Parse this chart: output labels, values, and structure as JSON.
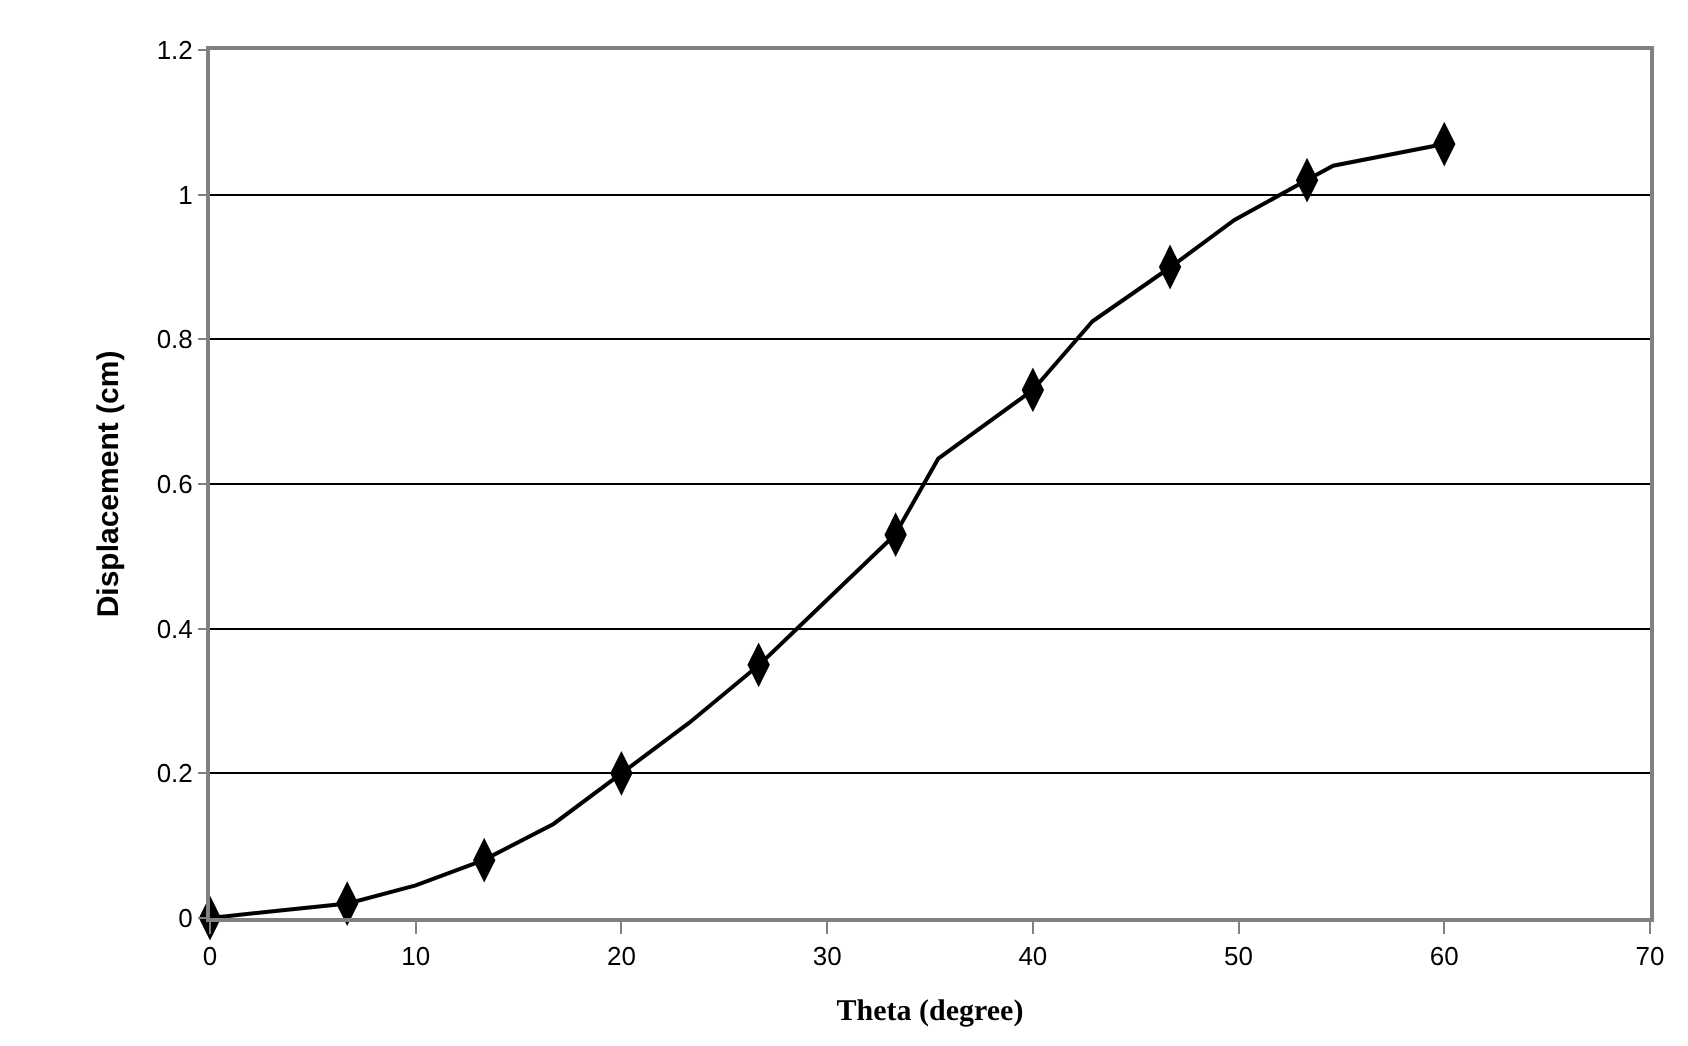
{
  "chart_data": {
    "type": "scatter",
    "xlabel": "Theta (degree)",
    "ylabel": "Displacement (cm)",
    "xlim": [
      0,
      70
    ],
    "xticks": [
      0,
      10,
      20,
      30,
      40,
      50,
      60,
      70
    ],
    "ylim": [
      0,
      1.2
    ],
    "yticks": [
      0,
      0.2,
      0.4,
      0.6,
      0.8,
      1,
      1.2
    ],
    "grid": "y",
    "series": [
      {
        "type": "line",
        "color": "#000000",
        "marker": "none",
        "line_style": "solid",
        "x": [
          0,
          3.3,
          6.7,
          10,
          13.3,
          16.7,
          20,
          23.3,
          26.7,
          30,
          33.3,
          35.4,
          40,
          42.9,
          46.7,
          49.8,
          53.3,
          54.6,
          60
        ],
        "values": [
          0,
          0.01,
          0.02,
          0.045,
          0.08,
          0.13,
          0.2,
          0.27,
          0.35,
          0.44,
          0.53,
          0.635,
          0.73,
          0.825,
          0.9,
          0.965,
          1.02,
          1.04,
          1.07
        ]
      },
      {
        "color": "#000000",
        "marker": "diamond",
        "x": [
          0,
          6.67,
          13.33,
          20,
          26.67,
          33.33,
          40,
          46.67,
          53.33,
          60
        ],
        "values": [
          0,
          0.02,
          0.08,
          0.2,
          0.35,
          0.53,
          0.73,
          0.9,
          1.02,
          1.07
        ]
      }
    ]
  }
}
